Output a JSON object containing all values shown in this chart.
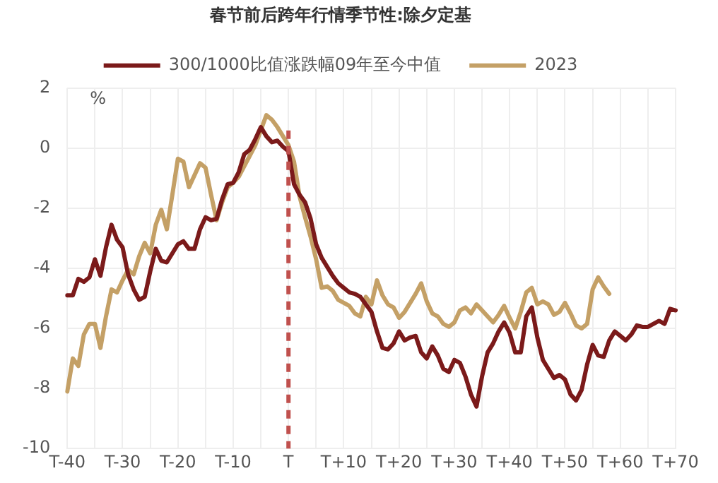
{
  "chart_data": {
    "type": "line",
    "title": "春节前后跨年行情季节性:除夕定基",
    "ylabel": "%",
    "categories": [
      "T-40",
      null,
      null,
      null,
      null,
      null,
      null,
      null,
      null,
      null,
      "T-30",
      null,
      null,
      null,
      null,
      null,
      null,
      null,
      null,
      null,
      "T-20",
      null,
      null,
      null,
      null,
      null,
      null,
      null,
      null,
      null,
      "T-10",
      null,
      null,
      null,
      null,
      null,
      null,
      null,
      null,
      null,
      "T",
      null,
      null,
      null,
      null,
      null,
      null,
      null,
      null,
      null,
      "T+10",
      null,
      null,
      null,
      null,
      null,
      null,
      null,
      null,
      null,
      "T+20",
      null,
      null,
      null,
      null,
      null,
      null,
      null,
      null,
      null,
      "T+30",
      null,
      null,
      null,
      null,
      null,
      null,
      null,
      null,
      null,
      "T+40",
      null,
      null,
      null,
      null,
      null,
      null,
      null,
      null,
      null,
      "T+50",
      null,
      null,
      null,
      null,
      null,
      null,
      null,
      null,
      null,
      "T+60",
      null,
      null,
      null,
      null,
      null,
      null,
      null,
      null,
      null,
      "T+70"
    ],
    "ylim": [
      -10,
      2
    ],
    "yticks": [
      -10,
      -8,
      -6,
      -4,
      -2,
      0,
      2
    ],
    "grid": true,
    "legend": "top",
    "marker": "none",
    "line_style": "solid",
    "ref_lines": [
      {
        "axis": "x",
        "value": "T",
        "color": "#c0504d",
        "line_style": "dashed"
      }
    ],
    "series": [
      {
        "name": "300/1000比值涨跌幅09年至今中值",
        "color": "#7b1a1a",
        "values": [
          -4.9,
          -4.9,
          -4.35,
          -4.45,
          -4.3,
          -3.7,
          -4.25,
          -3.3,
          -2.55,
          -3.05,
          -3.3,
          -4.2,
          -4.7,
          -5.05,
          -4.95,
          -4.1,
          -3.35,
          -3.75,
          -3.8,
          -3.5,
          -3.2,
          -3.1,
          -3.35,
          -3.35,
          -2.7,
          -2.3,
          -2.4,
          -2.35,
          -1.7,
          -1.2,
          -1.15,
          -0.8,
          -0.2,
          -0.05,
          0.3,
          0.7,
          0.4,
          0.2,
          0.25,
          0.05,
          -0.1,
          -1.2,
          -1.55,
          -1.8,
          -2.35,
          -3.2,
          -3.65,
          -3.95,
          -4.25,
          -4.5,
          -4.65,
          -4.8,
          -4.85,
          -4.95,
          -5.2,
          -5.45,
          -6.1,
          -6.65,
          -6.7,
          -6.5,
          -6.1,
          -6.4,
          -6.3,
          -6.25,
          -6.8,
          -7.0,
          -6.6,
          -6.9,
          -7.35,
          -7.45,
          -7.05,
          -7.15,
          -7.6,
          -8.2,
          -8.6,
          -7.6,
          -6.8,
          -6.5,
          -6.1,
          -5.8,
          -6.15,
          -6.8,
          -6.8,
          -5.6,
          -5.3,
          -6.3,
          -7.05,
          -7.35,
          -7.65,
          -7.55,
          -7.7,
          -8.2,
          -8.4,
          -8.05,
          -7.2,
          -6.55,
          -6.9,
          -6.95,
          -6.4,
          -6.1,
          -6.25,
          -6.4,
          -6.2,
          -5.9,
          -5.95,
          -5.95,
          -5.85,
          -5.75,
          -5.85,
          -5.35,
          -5.4
        ]
      },
      {
        "name": "2023",
        "color": "#c4a066",
        "values": [
          -8.1,
          -7.0,
          -7.25,
          -6.2,
          -5.85,
          -5.85,
          -6.65,
          -5.6,
          -4.7,
          -4.8,
          -4.4,
          -4.05,
          -4.2,
          -3.6,
          -3.15,
          -3.5,
          -2.55,
          -2.05,
          -2.7,
          -1.55,
          -0.35,
          -0.45,
          -1.3,
          -0.9,
          -0.5,
          -0.65,
          -1.55,
          -2.4,
          -1.8,
          -1.3,
          -1.15,
          -0.95,
          -0.6,
          -0.25,
          0.1,
          0.6,
          1.1,
          0.95,
          0.7,
          0.4,
          0.1,
          -0.45,
          -1.6,
          -2.3,
          -2.95,
          -3.7,
          -4.65,
          -4.6,
          -4.75,
          -5.05,
          -5.15,
          -5.25,
          -5.5,
          -5.6,
          -4.95,
          -5.2,
          -4.4,
          -4.9,
          -5.2,
          -5.3,
          -5.65,
          -5.45,
          -5.15,
          -4.85,
          -4.5,
          -5.1,
          -5.5,
          -5.6,
          -5.85,
          -5.95,
          -5.8,
          -5.4,
          -5.3,
          -5.5,
          -5.2,
          -5.4,
          -5.6,
          -5.8,
          -5.55,
          -5.25,
          -5.65,
          -6.0,
          -5.45,
          -4.8,
          -4.65,
          -5.2,
          -5.1,
          -5.2,
          -5.55,
          -5.45,
          -5.15,
          -5.5,
          -5.9,
          -6.0,
          -5.85,
          -4.7,
          -4.3,
          -4.6,
          -4.85,
          null,
          null,
          null,
          null,
          null,
          null,
          null,
          null,
          null,
          null,
          null,
          null
        ]
      }
    ]
  }
}
